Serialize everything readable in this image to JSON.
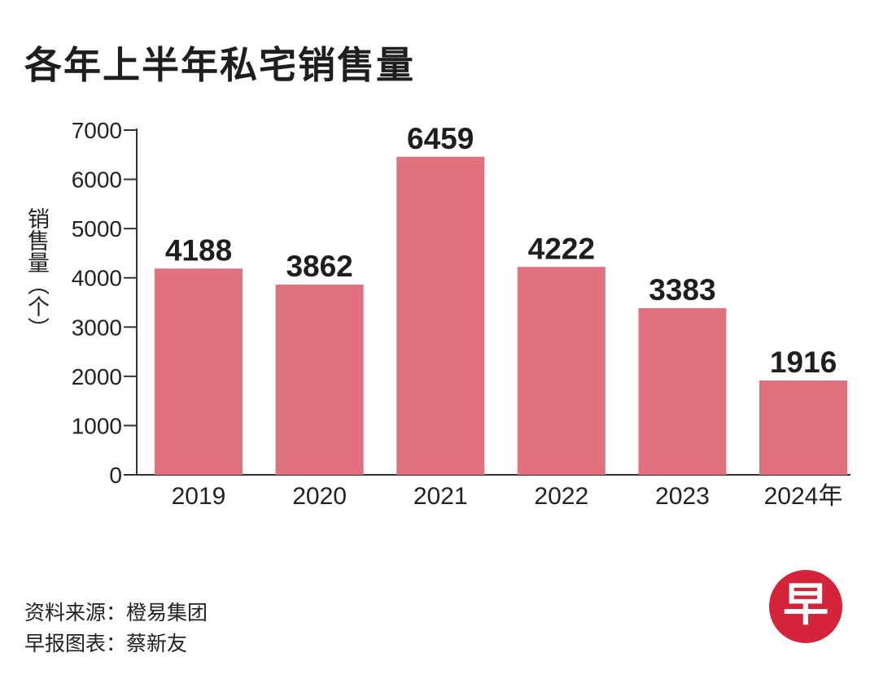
{
  "header": {
    "title": "各年上半年私宅销售量"
  },
  "chart_data": {
    "type": "bar",
    "title": "各年上半年私宅销售量",
    "ylabel": "销售量（个）",
    "xlabel": "",
    "categories": [
      "2019",
      "2020",
      "2021",
      "2022",
      "2023",
      "2024年"
    ],
    "values": [
      4188,
      3862,
      6459,
      4222,
      3383,
      1916
    ],
    "ylim": [
      0,
      7000
    ],
    "yticks": [
      "0",
      "1000",
      "2000",
      "3000",
      "4000",
      "5000",
      "6000",
      "7000"
    ],
    "grid": false,
    "bar_color": "#e0727f"
  },
  "footer": {
    "source": "资料来源：橙易集团",
    "credit": "早报图表：蔡新友"
  },
  "logo": {
    "char": "早",
    "color": "#d3243a"
  }
}
